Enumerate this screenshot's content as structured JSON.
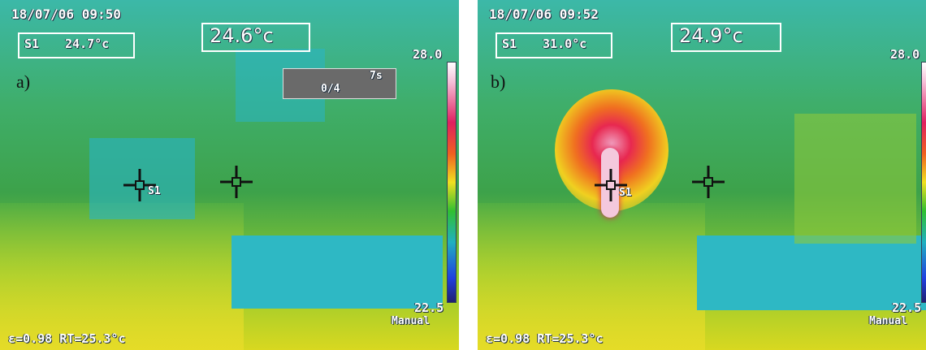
{
  "panels": [
    {
      "letter": "a)",
      "timestamp": "18/07/06 09:50",
      "spot_label": "S1",
      "spot_value": "24.7°c",
      "center_value": "24.6°c",
      "scale_max": "28.0",
      "scale_min": "22.5",
      "mode": "Manual",
      "status": "ε=0.98 RT=25.3°c",
      "marker": "S1",
      "timer": "7s",
      "counter": "0/4"
    },
    {
      "letter": "b)",
      "timestamp": "18/07/06 09:52",
      "spot_label": "S1",
      "spot_value": "31.0°c",
      "center_value": "24.9°c",
      "scale_max": "28.0",
      "scale_min": "22.5",
      "mode": "Manual",
      "status": "ε=0.98 RT=25.3°c",
      "marker": "S1"
    }
  ]
}
